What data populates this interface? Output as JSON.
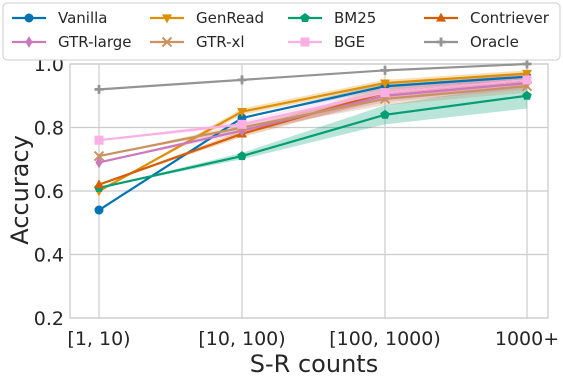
{
  "chart_data": {
    "type": "line",
    "xlabel": "S-R counts",
    "ylabel": "Accuracy",
    "categories": [
      "[1, 10)",
      "[10, 100)",
      "[100, 1000)",
      "1000+"
    ],
    "ylim": [
      0.2,
      1.0
    ],
    "yticks": [
      "0.2",
      "0.4",
      "0.6",
      "0.8",
      "1.0"
    ],
    "grid": true,
    "legend_position": "top",
    "series": [
      {
        "name": "Vanilla",
        "color": "#0173b2",
        "marker": "circle",
        "values": [
          0.54,
          0.83,
          0.93,
          0.96
        ],
        "band": [
          0,
          0,
          0.01,
          0.01
        ]
      },
      {
        "name": "GenRead",
        "color": "#de8f05",
        "marker": "triangle-down",
        "values": [
          0.6,
          0.85,
          0.94,
          0.97
        ],
        "band": [
          0,
          0.01,
          0.01,
          0.01
        ]
      },
      {
        "name": "BM25",
        "color": "#029e73",
        "marker": "pentagon",
        "values": [
          0.61,
          0.71,
          0.84,
          0.9
        ],
        "band": [
          0,
          0.01,
          0.03,
          0.04
        ]
      },
      {
        "name": "Contriever",
        "color": "#d55e00",
        "marker": "triangle-up",
        "values": [
          0.62,
          0.78,
          0.91,
          0.95
        ],
        "band": [
          0,
          0.01,
          0.02,
          0.02
        ]
      },
      {
        "name": "GTR-large",
        "color": "#cc78bc",
        "marker": "diamond",
        "values": [
          0.69,
          0.79,
          0.9,
          0.94
        ],
        "band": [
          0,
          0.01,
          0.02,
          0.02
        ]
      },
      {
        "name": "GTR-xl",
        "color": "#ca9161",
        "marker": "x",
        "values": [
          0.71,
          0.8,
          0.89,
          0.93
        ],
        "band": [
          0,
          0.01,
          0.02,
          0.02
        ]
      },
      {
        "name": "BGE",
        "color": "#fbafe4",
        "marker": "square",
        "values": [
          0.76,
          0.81,
          0.91,
          0.95
        ],
        "band": [
          0,
          0.01,
          0.02,
          0.02
        ]
      },
      {
        "name": "Oracle",
        "color": "#949494",
        "marker": "plus",
        "values": [
          0.92,
          0.95,
          0.98,
          1.0
        ],
        "band": [
          0,
          0,
          0,
          0
        ]
      }
    ]
  }
}
